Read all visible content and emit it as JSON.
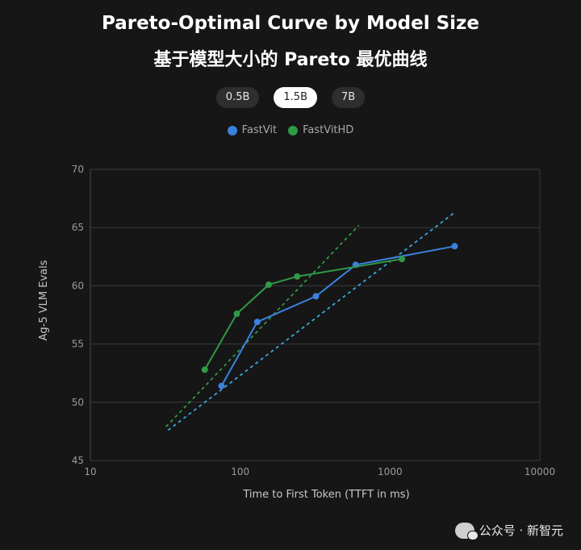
{
  "title_en": "Pareto-Optimal Curve by Model Size",
  "title_zh": "基于模型大小的 Pareto 最优曲线",
  "size_tabs": [
    {
      "label": "0.5B",
      "active": false
    },
    {
      "label": "1.5B",
      "active": true
    },
    {
      "label": "7B",
      "active": false
    }
  ],
  "watermark": "公众号 · 新智元",
  "colors": {
    "background": "#161616",
    "grid": "#3a3a3a",
    "fastvit": "#3b82e0",
    "fastvithd": "#2f9a47",
    "fastvit_trend": "#38a8d8"
  },
  "chart_data": {
    "type": "line",
    "title": "",
    "xlabel": "Time to First Token (TTFT in ms)",
    "ylabel": "Ag-5 VLM Evals",
    "x_scale": "log",
    "xlim": [
      10,
      10000
    ],
    "ylim": [
      45,
      70
    ],
    "x_ticks": [
      10,
      100,
      1000,
      10000
    ],
    "y_ticks": [
      45,
      50,
      55,
      60,
      65,
      70
    ],
    "grid": "horizontal",
    "legend_position": "top-center",
    "series": [
      {
        "name": "FastVit",
        "color": "#3b82e0",
        "x": [
          75,
          130,
          320,
          590,
          2700
        ],
        "y": [
          51.4,
          56.9,
          59.1,
          61.8,
          63.4
        ]
      },
      {
        "name": "FastVitHD",
        "color": "#2f9a47",
        "x": [
          58,
          95,
          155,
          240,
          1200
        ],
        "y": [
          52.8,
          57.6,
          60.1,
          60.8,
          62.3
        ]
      }
    ],
    "trend_lines": [
      {
        "series": "FastVit",
        "color": "#38a8d8",
        "x": [
          33,
          2700
        ],
        "y": [
          47.6,
          66.3
        ]
      },
      {
        "series": "FastVitHD",
        "color": "#2f9a47",
        "x": [
          32,
          620
        ],
        "y": [
          47.9,
          65.2
        ]
      }
    ]
  }
}
